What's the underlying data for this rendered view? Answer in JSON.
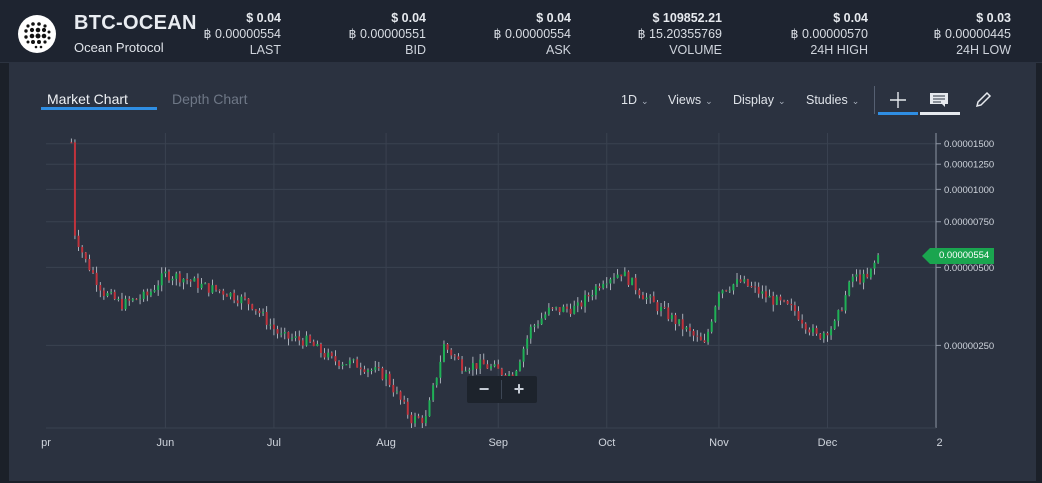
{
  "header": {
    "symbol": "BTC-OCEAN",
    "name": "Ocean Protocol",
    "stats": [
      {
        "usd": "$ 0.04",
        "btc": "฿ 0.00000554",
        "label": "LAST"
      },
      {
        "usd": "$ 0.04",
        "btc": "฿ 0.00000551",
        "label": "BID"
      },
      {
        "usd": "$ 0.04",
        "btc": "฿ 0.00000554",
        "label": "ASK"
      },
      {
        "usd": "$ 109852.21",
        "btc": "฿ 15.20355769",
        "label": "VOLUME"
      },
      {
        "usd": "$ 0.04",
        "btc": "฿ 0.00000570",
        "label": "24H HIGH"
      },
      {
        "usd": "$ 0.03",
        "btc": "฿ 0.00000445",
        "label": "24H LOW"
      }
    ]
  },
  "tabs": {
    "market": "Market Chart",
    "depth": "Depth Chart"
  },
  "menus": {
    "interval": "1D",
    "views": "Views",
    "display": "Display",
    "studies": "Studies"
  },
  "tools": {
    "crosshair": "crosshair-icon",
    "annotation": "annotation-icon",
    "draw": "pencil-icon"
  },
  "zoom": {
    "minus": "−",
    "plus": "+"
  },
  "chart_data": {
    "type": "candlestick",
    "x_ticks": [
      "pr",
      "Jun",
      "Jul",
      "Aug",
      "Sep",
      "Oct",
      "Nov",
      "Dec",
      "2"
    ],
    "y_ticks": [
      "0.00001500",
      "0.00001250",
      "0.00001000",
      "0.00000750",
      "0.00000500",
      "0.00000250"
    ],
    "y_scale": "log",
    "last_price_label": "0.00000554",
    "grid": true,
    "colors": {
      "up": "#1fb156",
      "down": "#c0333c",
      "grid": "#3a4250",
      "tag": "#1aa54f"
    },
    "closes": [
      {
        "date": "2019-05-06",
        "close": 1.52e-05
      },
      {
        "date": "2019-05-07",
        "close": 6.8e-06
      },
      {
        "date": "2019-05-10",
        "close": 5.3e-06
      },
      {
        "date": "2019-05-15",
        "close": 4e-06
      },
      {
        "date": "2019-05-20",
        "close": 3.6e-06
      },
      {
        "date": "2019-05-27",
        "close": 3.9e-06
      },
      {
        "date": "2019-06-01",
        "close": 4.7e-06
      },
      {
        "date": "2019-06-05",
        "close": 4.6e-06
      },
      {
        "date": "2019-06-12",
        "close": 4.2e-06
      },
      {
        "date": "2019-06-18",
        "close": 4e-06
      },
      {
        "date": "2019-06-25",
        "close": 3.6e-06
      },
      {
        "date": "2019-07-03",
        "close": 2.7e-06
      },
      {
        "date": "2019-07-10",
        "close": 2.6e-06
      },
      {
        "date": "2019-07-17",
        "close": 2.2e-06
      },
      {
        "date": "2019-07-25",
        "close": 2.1e-06
      },
      {
        "date": "2019-08-01",
        "close": 1.9e-06
      },
      {
        "date": "2019-08-08",
        "close": 1.3e-06
      },
      {
        "date": "2019-08-12",
        "close": 1.3e-06
      },
      {
        "date": "2019-08-17",
        "close": 2.5e-06
      },
      {
        "date": "2019-08-22",
        "close": 2.1e-06
      },
      {
        "date": "2019-08-28",
        "close": 2.1e-06
      },
      {
        "date": "2019-09-05",
        "close": 1.9e-06
      },
      {
        "date": "2019-09-10",
        "close": 2.9e-06
      },
      {
        "date": "2019-09-15",
        "close": 3.4e-06
      },
      {
        "date": "2019-09-23",
        "close": 3.5e-06
      },
      {
        "date": "2019-09-30",
        "close": 4.5e-06
      },
      {
        "date": "2019-10-05",
        "close": 4.8e-06
      },
      {
        "date": "2019-10-12",
        "close": 3.8e-06
      },
      {
        "date": "2019-10-20",
        "close": 3.1e-06
      },
      {
        "date": "2019-10-28",
        "close": 2.5e-06
      },
      {
        "date": "2019-11-01",
        "close": 4.1e-06
      },
      {
        "date": "2019-11-07",
        "close": 4.4e-06
      },
      {
        "date": "2019-11-15",
        "close": 3.8e-06
      },
      {
        "date": "2019-11-22",
        "close": 3.4e-06
      },
      {
        "date": "2019-11-28",
        "close": 2.7e-06
      },
      {
        "date": "2019-12-03",
        "close": 3e-06
      },
      {
        "date": "2019-12-08",
        "close": 4.6e-06
      },
      {
        "date": "2019-12-12",
        "close": 4.5e-06
      },
      {
        "date": "2019-12-15",
        "close": 5.54e-06
      }
    ]
  }
}
